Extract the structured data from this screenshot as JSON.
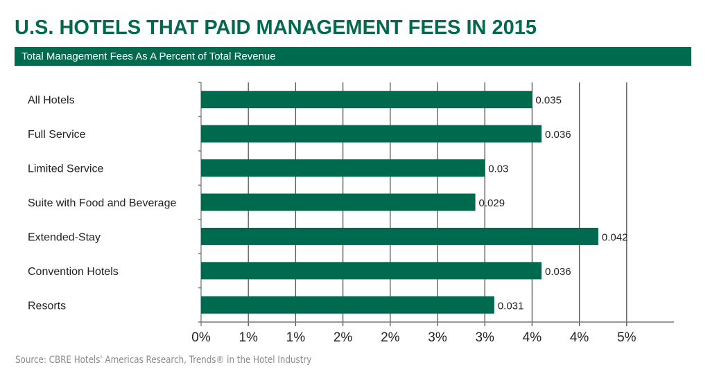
{
  "chart_data": {
    "type": "bar",
    "orientation": "horizontal",
    "title": "U.S. HOTELS THAT PAID MANAGEMENT FEES IN 2015",
    "subtitle": "Total Management Fees As A Percent of Total Revenue",
    "categories": [
      "All Hotels",
      "Full Service",
      "Limited Service",
      "Suite with Food and Beverage",
      "Extended-Stay",
      "Convention Hotels",
      "Resorts"
    ],
    "values": [
      0.035,
      0.036,
      0.03,
      0.029,
      0.042,
      0.036,
      0.031
    ],
    "data_labels": [
      "0.035",
      "0.036",
      "0.03",
      "0.029",
      "0.042",
      "0.036",
      "0.031"
    ],
    "xlim": [
      0,
      0.05
    ],
    "x_ticks": [
      0,
      0.005,
      0.01,
      0.015,
      0.02,
      0.025,
      0.03,
      0.035,
      0.04,
      0.045,
      0.05
    ],
    "x_tick_labels": [
      "0%",
      "1%",
      "1%",
      "2%",
      "2%",
      "3%",
      "3%",
      "4%",
      "4%",
      "5%",
      "5%"
    ],
    "grid": "vertical",
    "bar_color": "#006a4e",
    "xlabel": "",
    "ylabel": ""
  },
  "source": "Source: CBRE Hotels' Americas Research, Trends® in the Hotel Industry"
}
